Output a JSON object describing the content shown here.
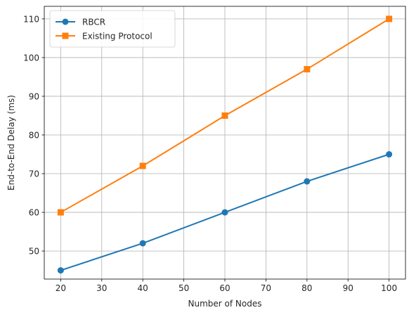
{
  "chart_data": {
    "type": "line",
    "x": [
      20,
      40,
      60,
      80,
      100
    ],
    "series": [
      {
        "name": "RBCR",
        "values": [
          45,
          52,
          60,
          68,
          75
        ],
        "color": "#1f77b4",
        "marker": "circle"
      },
      {
        "name": "Existing Protocol",
        "values": [
          60,
          72,
          85,
          97,
          110
        ],
        "color": "#ff7f0e",
        "marker": "square"
      }
    ],
    "xlabel": "Number of Nodes",
    "ylabel": "End-to-End Delay (ms)",
    "xlim": [
      16,
      104
    ],
    "ylim": [
      42.75,
      113.25
    ],
    "xticks": [
      20,
      30,
      40,
      50,
      60,
      70,
      80,
      90,
      100
    ],
    "yticks": [
      50,
      60,
      70,
      80,
      90,
      100,
      110
    ],
    "grid": true,
    "legend_position": "top-left"
  }
}
